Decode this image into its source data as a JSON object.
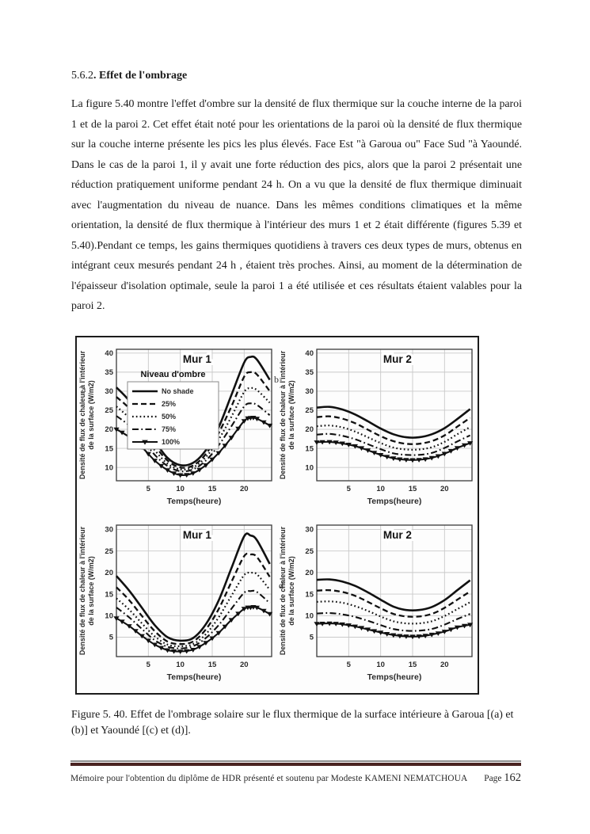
{
  "page": {
    "heading": {
      "number": "5.6.2",
      "title": ". Effet de l'ombrage"
    },
    "paragraph": "La figure 5.40 montre l'effet d'ombre sur la densité de flux thermique sur la couche interne de la paroi 1 et de la paroi 2. Cet effet  était noté pour les orientations de la paroi où la densité de flux thermique sur la couche interne présente les pics les plus élevés. Face Est \"à Garoua ou\" Face Sud \"à Yaoundé. Dans le cas de la paroi 1, il y avait une forte réduction des pics, alors que la paroi 2 présentait une réduction pratiquement uniforme pendant 24 h. On a vu que la densité de flux thermique diminuait avec l'augmentation du niveau de nuance. Dans les mêmes conditions climatiques et la même orientation, la densité de flux thermique à l'intérieur des murs 1 et 2 était différente (figures 5.39 et 5.40).Pendant ce temps, les gains thermiques quotidiens à travers ces deux types de murs, obtenus en intégrant ceux mesurés pendant 24 h , étaient très proches. Ainsi, au moment de la détermination de l'épaisseur d'isolation optimale, seule la paroi 1 a été utilisée et ces résultats étaient valables pour la paroi 2.",
    "caption": "Figure 5. 40. Effet de l'ombrage solaire sur le flux thermique de la surface intérieure à Garoua [(a) et (b)] et Yaoundé [(c) et (d)].",
    "footer": {
      "text": "Mémoire  pour l'obtention du diplôme de HDR présenté et soutenu  par Modeste KAMENI NEMATCHOUA",
      "page_label": "Page ",
      "page_number": "162",
      "rule_color": "#4a2321"
    }
  },
  "figure": {
    "panel_letters": {
      "a": "a",
      "b": "b",
      "d": "d"
    },
    "line_color": "#111111",
    "grid_color": "#c9c9c9"
  },
  "chart_data": [
    {
      "id": "a",
      "type": "line",
      "title": "Mur 1",
      "xlabel": "Temps(heure)",
      "ylabel_line1": "Densité de flux de chaleur à l'intérieur",
      "ylabel_line2": "de la surface (W/m2)",
      "xlim": [
        0,
        24.3
      ],
      "ylim": [
        6.5,
        41
      ],
      "xticks": [
        5,
        10,
        15,
        20
      ],
      "yticks": [
        10,
        15,
        20,
        25,
        30,
        35,
        40
      ],
      "legend": {
        "title": "Niveau d'ombre"
      },
      "x": [
        0,
        2,
        4,
        6,
        8,
        10,
        12,
        14,
        16,
        18,
        20,
        21,
        22,
        24
      ],
      "series": [
        {
          "name": "No shade",
          "style": "solid",
          "values": [
            31,
            27.5,
            22.5,
            17,
            12.5,
            10.6,
            11.2,
            14.5,
            20.5,
            29,
            37.5,
            39,
            38.3,
            33
          ]
        },
        {
          "name": "25%",
          "style": "dashed",
          "values": [
            28.5,
            25.5,
            21,
            15.8,
            11.8,
            10,
            10.5,
            13.5,
            19,
            26,
            33.8,
            35,
            34.4,
            30
          ]
        },
        {
          "name": "50%",
          "style": "dotted",
          "values": [
            26,
            23,
            19,
            14.5,
            11,
            9.5,
            10,
            12.7,
            17.3,
            23.3,
            29.8,
            30.8,
            30.3,
            27
          ]
        },
        {
          "name": "75%",
          "style": "dashdot",
          "values": [
            23.5,
            21,
            17.5,
            13.3,
            10.4,
            9,
            9.5,
            11.8,
            15.8,
            20.8,
            26,
            26.8,
            26.4,
            23.7
          ]
        },
        {
          "name": "100%",
          "style": "marker",
          "values": [
            20,
            18,
            15.3,
            11.8,
            9.3,
            8,
            8.5,
            10.6,
            13.8,
            17.8,
            22.2,
            23,
            22.8,
            21
          ]
        }
      ]
    },
    {
      "id": "b",
      "type": "line",
      "title": "Mur 2",
      "xlabel": "Temps(heure)",
      "ylabel_line1": "Densité de flux de chaleur à l'intérieur",
      "ylabel_line2": "de la surface (W/m2)",
      "xlim": [
        0,
        24.3
      ],
      "ylim": [
        6.5,
        41
      ],
      "xticks": [
        5,
        10,
        15,
        20
      ],
      "yticks": [
        10,
        15,
        20,
        25,
        30,
        35,
        40
      ],
      "x": [
        0,
        2,
        4,
        6,
        8,
        10,
        12,
        14,
        16,
        18,
        20,
        22,
        24
      ],
      "series": [
        {
          "name": "No shade",
          "style": "solid",
          "values": [
            25.7,
            25.9,
            25.2,
            23.9,
            22.1,
            20.2,
            18.7,
            17.9,
            17.9,
            18.7,
            20.3,
            22.7,
            25.3
          ]
        },
        {
          "name": "25%",
          "style": "dashed",
          "values": [
            23.2,
            23.4,
            22.8,
            21.6,
            19.9,
            18.2,
            16.9,
            16.2,
            16.2,
            16.9,
            18.4,
            20.7,
            23
          ]
        },
        {
          "name": "50%",
          "style": "dotted",
          "values": [
            20.8,
            21,
            20.5,
            19.4,
            17.9,
            16.4,
            15.2,
            14.7,
            14.7,
            15.3,
            16.7,
            18.7,
            20.6
          ]
        },
        {
          "name": "75%",
          "style": "dashdot",
          "values": [
            18.6,
            18.8,
            18.3,
            17.4,
            16.1,
            14.8,
            13.7,
            13.3,
            13.3,
            13.8,
            15.1,
            16.8,
            18.4
          ]
        },
        {
          "name": "100%",
          "style": "marker",
          "values": [
            16.6,
            16.7,
            16.3,
            15.6,
            14.5,
            13.3,
            12.4,
            12,
            12,
            12.5,
            13.6,
            15.1,
            16.4
          ]
        }
      ]
    },
    {
      "id": "c",
      "type": "line",
      "title": "Mur 1",
      "xlabel": "Temps(heure)",
      "ylabel_line1": "Densité de flux de chaleur à l'intérieur",
      "ylabel_line2": "de la surface (W/m2)",
      "xlim": [
        0,
        24.3
      ],
      "ylim": [
        0.5,
        31
      ],
      "xticks": [
        5,
        10,
        15,
        20
      ],
      "yticks": [
        5,
        10,
        15,
        20,
        25,
        30
      ],
      "x": [
        0,
        2,
        4,
        6,
        8,
        10,
        12,
        14,
        16,
        18,
        20,
        21,
        22,
        24
      ],
      "series": [
        {
          "name": "No shade",
          "style": "solid",
          "values": [
            19.2,
            15.8,
            11.8,
            7.8,
            5,
            4.2,
            4.8,
            8,
            13.5,
            21,
            28.4,
            28.6,
            27.5,
            22
          ]
        },
        {
          "name": "25%",
          "style": "dashed",
          "values": [
            16.6,
            13.6,
            9.9,
            6.4,
            4,
            3.4,
            4,
            6.8,
            11.5,
            17.8,
            23.8,
            24.2,
            23.6,
            19
          ]
        },
        {
          "name": "50%",
          "style": "dotted",
          "values": [
            14,
            11.4,
            8.2,
            5.2,
            3.3,
            2.9,
            3.4,
            5.7,
            9.6,
            14.6,
            19.4,
            19.9,
            19.6,
            16
          ]
        },
        {
          "name": "75%",
          "style": "dashdot",
          "values": [
            11.9,
            9.6,
            6.9,
            4.3,
            2.8,
            2.4,
            2.9,
            4.8,
            7.8,
            11.6,
            15.3,
            15.7,
            15.5,
            12.9
          ]
        },
        {
          "name": "100%",
          "style": "marker",
          "values": [
            9.4,
            7.6,
            5.3,
            3.3,
            2,
            1.7,
            2.1,
            3.7,
            6,
            9,
            11.6,
            11.9,
            11.9,
            10.4
          ]
        }
      ]
    },
    {
      "id": "d",
      "type": "line",
      "title": "Mur 2",
      "xlabel": "Temps(heure)",
      "ylabel_line1": "Densité de flux de chaleur à l'intérieur",
      "ylabel_line2": "de la surface (W/m2)",
      "xlim": [
        0,
        24.3
      ],
      "ylim": [
        0.5,
        31
      ],
      "xticks": [
        5,
        10,
        15,
        20
      ],
      "yticks": [
        5,
        10,
        15,
        20,
        25,
        30
      ],
      "x": [
        0,
        2,
        4,
        6,
        8,
        10,
        12,
        14,
        16,
        18,
        20,
        22,
        24
      ],
      "series": [
        {
          "name": "No shade",
          "style": "solid",
          "values": [
            18.3,
            18.4,
            17.9,
            16.9,
            15.4,
            13.7,
            12.1,
            11.3,
            11.3,
            12,
            13.6,
            15.9,
            18.2
          ]
        },
        {
          "name": "25%",
          "style": "dashed",
          "values": [
            15.8,
            15.9,
            15.5,
            14.6,
            13.2,
            11.7,
            10.4,
            9.8,
            9.8,
            10.4,
            11.8,
            13.7,
            15.6
          ]
        },
        {
          "name": "50%",
          "style": "dotted",
          "values": [
            13.2,
            13.3,
            13,
            12.2,
            11.1,
            9.8,
            8.7,
            8.2,
            8.2,
            8.7,
            9.9,
            11.5,
            13.1
          ]
        },
        {
          "name": "75%",
          "style": "dashdot",
          "values": [
            10.5,
            10.6,
            10.3,
            9.7,
            8.8,
            7.8,
            6.9,
            6.5,
            6.5,
            6.9,
            7.9,
            9.2,
            10.4
          ]
        },
        {
          "name": "100%",
          "style": "marker",
          "values": [
            8.1,
            8.2,
            8,
            7.5,
            6.8,
            6.1,
            5.5,
            5.2,
            5.2,
            5.6,
            6.3,
            7.3,
            7.9
          ]
        }
      ]
    }
  ]
}
